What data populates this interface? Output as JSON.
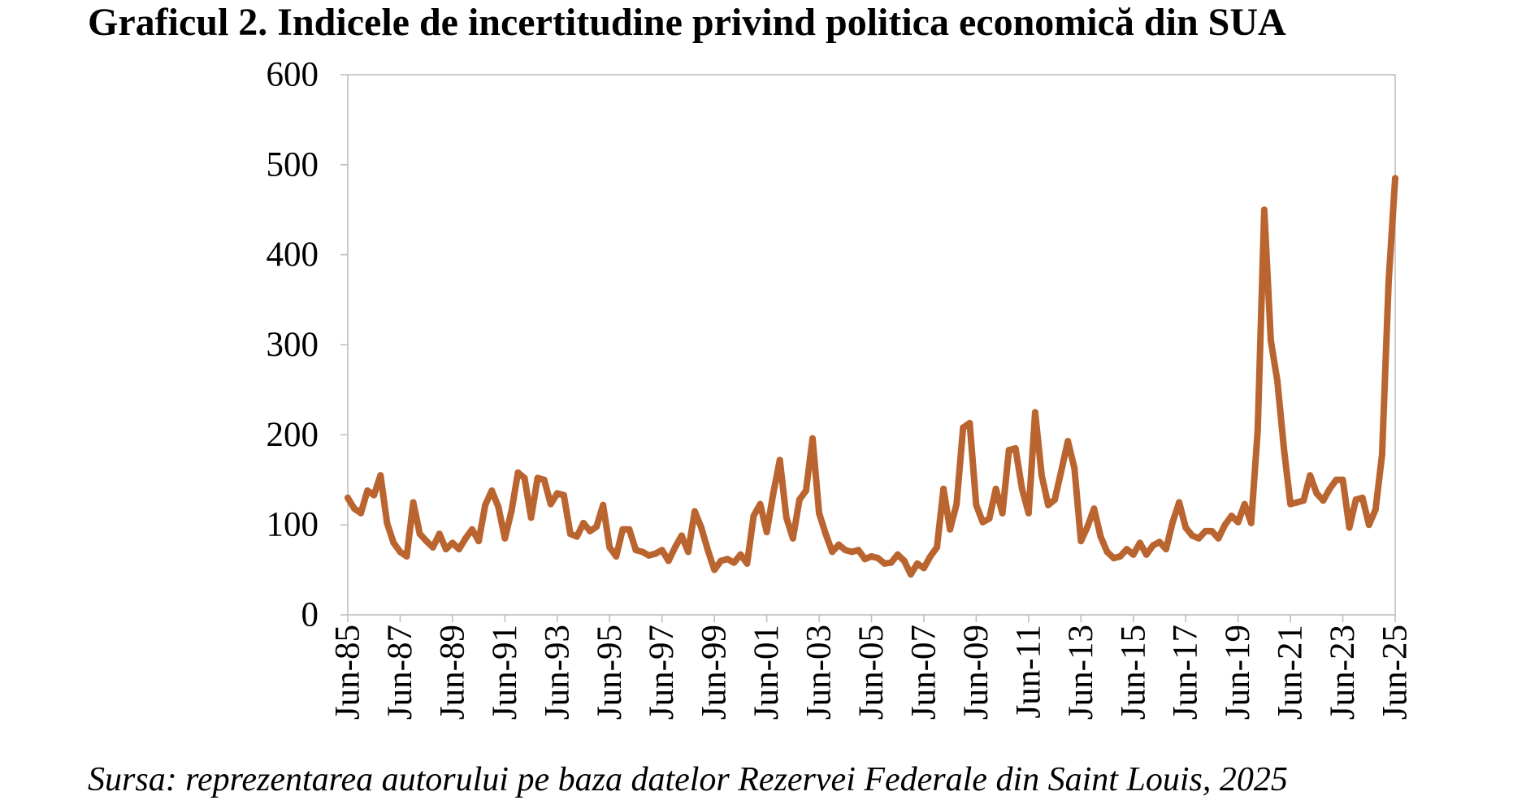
{
  "chart_data": {
    "type": "line",
    "title": "Graficul 2. Indicele de incertitudine privind politica economică din SUA",
    "source": "Sursa: reprezentarea autorului pe baza datelor Rezervei Federale din Saint Louis, 2025",
    "x": [
      "Jun-85",
      "Sep-85",
      "Dec-85",
      "Mar-86",
      "Jun-86",
      "Sep-86",
      "Dec-86",
      "Mar-87",
      "Jun-87",
      "Sep-87",
      "Dec-87",
      "Mar-88",
      "Jun-88",
      "Sep-88",
      "Dec-88",
      "Mar-89",
      "Jun-89",
      "Sep-89",
      "Dec-89",
      "Mar-90",
      "Jun-90",
      "Sep-90",
      "Dec-90",
      "Mar-91",
      "Jun-91",
      "Sep-91",
      "Dec-91",
      "Mar-92",
      "Jun-92",
      "Sep-92",
      "Dec-92",
      "Mar-93",
      "Jun-93",
      "Sep-93",
      "Dec-93",
      "Mar-94",
      "Jun-94",
      "Sep-94",
      "Dec-94",
      "Mar-95",
      "Jun-95",
      "Sep-95",
      "Dec-95",
      "Mar-96",
      "Jun-96",
      "Sep-96",
      "Dec-96",
      "Mar-97",
      "Jun-97",
      "Sep-97",
      "Dec-97",
      "Mar-98",
      "Jun-98",
      "Sep-98",
      "Dec-98",
      "Mar-99",
      "Jun-99",
      "Sep-99",
      "Dec-99",
      "Mar-00",
      "Jun-00",
      "Sep-00",
      "Dec-00",
      "Mar-01",
      "Jun-01",
      "Sep-01",
      "Dec-01",
      "Mar-02",
      "Jun-02",
      "Sep-02",
      "Dec-02",
      "Mar-03",
      "Jun-03",
      "Sep-03",
      "Dec-03",
      "Mar-04",
      "Jun-04",
      "Sep-04",
      "Dec-04",
      "Mar-05",
      "Jun-05",
      "Sep-05",
      "Dec-05",
      "Mar-06",
      "Jun-06",
      "Sep-06",
      "Dec-06",
      "Mar-07",
      "Jun-07",
      "Sep-07",
      "Dec-07",
      "Mar-08",
      "Jun-08",
      "Sep-08",
      "Dec-08",
      "Mar-09",
      "Jun-09",
      "Sep-09",
      "Dec-09",
      "Mar-10",
      "Jun-10",
      "Sep-10",
      "Dec-10",
      "Mar-11",
      "Jun-11",
      "Sep-11",
      "Dec-11",
      "Mar-12",
      "Jun-12",
      "Sep-12",
      "Dec-12",
      "Mar-13",
      "Jun-13",
      "Sep-13",
      "Dec-13",
      "Mar-14",
      "Jun-14",
      "Sep-14",
      "Dec-14",
      "Mar-15",
      "Jun-15",
      "Sep-15",
      "Dec-15",
      "Mar-16",
      "Jun-16",
      "Sep-16",
      "Dec-16",
      "Mar-17",
      "Jun-17",
      "Sep-17",
      "Dec-17",
      "Mar-18",
      "Jun-18",
      "Sep-18",
      "Dec-18",
      "Mar-19",
      "Jun-19",
      "Sep-19",
      "Dec-19",
      "Mar-20",
      "Jun-20",
      "Sep-20",
      "Dec-20",
      "Mar-21",
      "Jun-21",
      "Sep-21",
      "Dec-21",
      "Mar-22",
      "Jun-22",
      "Sep-22",
      "Dec-22",
      "Mar-23",
      "Jun-23",
      "Sep-23",
      "Dec-23",
      "Mar-24",
      "Jun-24",
      "Sep-24",
      "Dec-24",
      "Mar-25",
      "Jun-25"
    ],
    "series": [
      {
        "color": "#BA6430",
        "values": [
          130,
          118,
          113,
          138,
          133,
          155,
          102,
          80,
          70,
          65,
          125,
          90,
          82,
          75,
          90,
          73,
          80,
          73,
          85,
          95,
          82,
          122,
          138,
          120,
          85,
          115,
          158,
          152,
          108,
          152,
          150,
          123,
          135,
          133,
          90,
          87,
          102,
          93,
          98,
          122,
          75,
          65,
          95,
          95,
          72,
          70,
          66,
          68,
          72,
          60,
          75,
          88,
          70,
          115,
          97,
          72,
          50,
          60,
          62,
          58,
          67,
          57,
          110,
          123,
          92,
          135,
          172,
          108,
          85,
          128,
          138,
          196,
          113,
          90,
          70,
          78,
          72,
          70,
          72,
          62,
          65,
          63,
          57,
          58,
          67,
          60,
          45,
          57,
          52,
          65,
          75,
          140,
          95,
          123,
          208,
          213,
          122,
          103,
          107,
          140,
          113,
          183,
          185,
          140,
          113,
          225,
          155,
          122,
          128,
          160,
          193,
          163,
          82,
          98,
          118,
          87,
          70,
          63,
          65,
          73,
          67,
          80,
          67,
          77,
          81,
          73,
          103,
          125,
          97,
          88,
          85,
          93,
          93,
          85,
          100,
          110,
          103,
          123,
          102,
          205,
          450,
          305,
          260,
          185,
          123,
          125,
          127,
          155,
          135,
          127,
          140,
          150,
          150,
          97,
          128,
          130,
          100,
          117,
          178,
          370,
          485
        ]
      }
    ],
    "x_ticks": [
      "Jun-85",
      "Jun-87",
      "Jun-89",
      "Jun-91",
      "Jun-93",
      "Jun-95",
      "Jun-97",
      "Jun-99",
      "Jun-01",
      "Jun-03",
      "Jun-05",
      "Jun-07",
      "Jun-09",
      "Jun-11",
      "Jun-13",
      "Jun-15",
      "Jun-17",
      "Jun-19",
      "Jun-21",
      "Jun-23",
      "Jun-25"
    ],
    "ylim": [
      0,
      600
    ],
    "y_ticks": [
      0,
      100,
      200,
      300,
      400,
      500,
      600
    ],
    "grid": false,
    "legend": "none",
    "frame_color": "#BFBFBF"
  }
}
